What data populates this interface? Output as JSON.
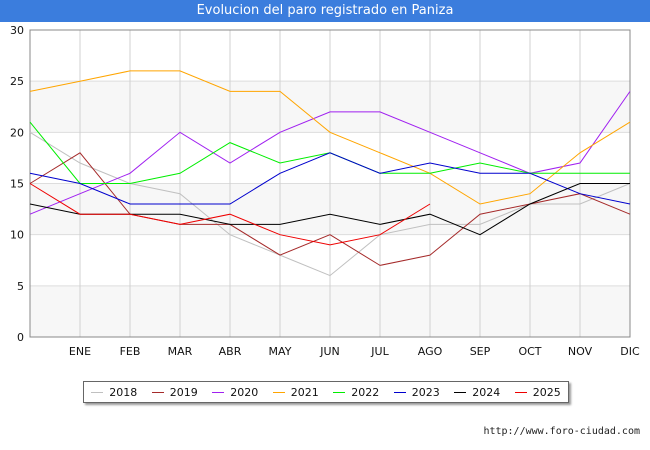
{
  "header": {
    "title": "Evolucion del paro registrado en Paniza"
  },
  "footer": {
    "url": "http://www.foro-ciudad.com"
  },
  "chart_data": {
    "type": "line",
    "title": "Evolucion del paro registrado en Paniza",
    "categories": [
      "ENE",
      "FEB",
      "MAR",
      "ABR",
      "MAY",
      "JUN",
      "JUL",
      "AGO",
      "SEP",
      "OCT",
      "NOV",
      "DIC"
    ],
    "ylim": [
      0,
      30
    ],
    "yticks": [
      0,
      5,
      10,
      15,
      20,
      25,
      30
    ],
    "grid": true,
    "legend_position": "bottom",
    "series": [
      {
        "name": "2018",
        "color": "#c0c0c0",
        "start": 20,
        "values": [
          17,
          15,
          14,
          10,
          8,
          6,
          10,
          11,
          11,
          13,
          13,
          15
        ]
      },
      {
        "name": "2019",
        "color": "#a52a2a",
        "start": 15,
        "values": [
          18,
          12,
          11,
          11,
          8,
          10,
          7,
          8,
          12,
          13,
          14,
          12
        ]
      },
      {
        "name": "2020",
        "color": "#a020f0",
        "start": 12,
        "values": [
          14,
          16,
          20,
          17,
          20,
          22,
          22,
          20,
          18,
          16,
          17,
          24
        ]
      },
      {
        "name": "2021",
        "color": "#ffa500",
        "start": 24,
        "values": [
          25,
          26,
          26,
          24,
          24,
          20,
          18,
          16,
          13,
          14,
          18,
          21
        ]
      },
      {
        "name": "2022",
        "color": "#00ee00",
        "start": 21,
        "values": [
          15,
          15,
          16,
          19,
          17,
          18,
          16,
          16,
          17,
          16,
          16,
          16
        ]
      },
      {
        "name": "2023",
        "color": "#0000cd",
        "start": 16,
        "values": [
          15,
          13,
          13,
          13,
          16,
          18,
          16,
          17,
          16,
          16,
          14,
          13
        ]
      },
      {
        "name": "2024",
        "color": "#000000",
        "start": 13,
        "values": [
          12,
          12,
          12,
          11,
          11,
          12,
          11,
          12,
          10,
          13,
          15,
          15
        ]
      },
      {
        "name": "2025",
        "color": "#ee0000",
        "start": 15,
        "values": [
          12,
          12,
          11,
          12,
          10,
          9,
          10,
          13,
          null,
          null,
          null,
          null
        ]
      }
    ]
  }
}
